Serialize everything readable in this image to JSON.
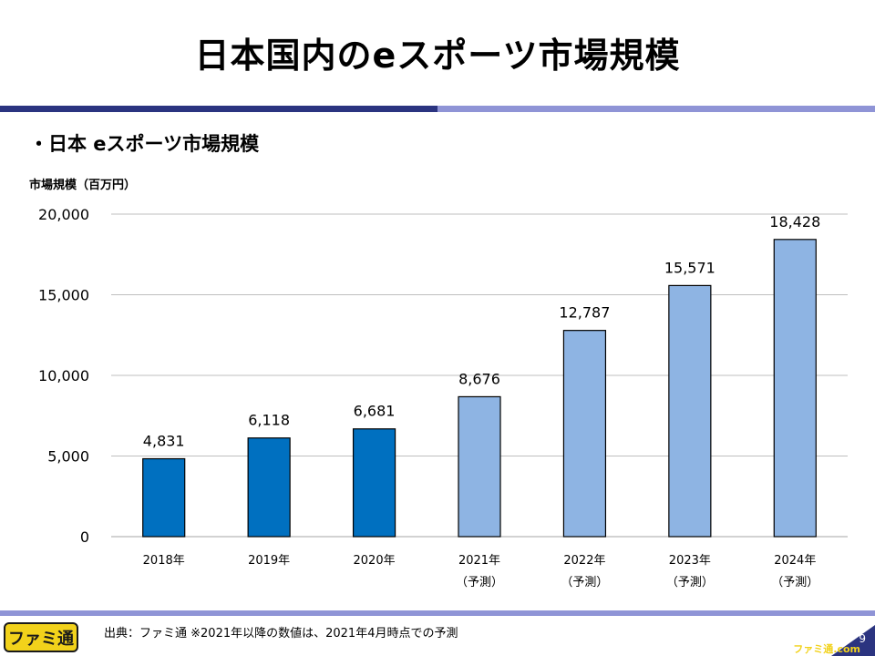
{
  "slide": {
    "title": "日本国内のeスポーツ市場規模",
    "section_heading": "・日本 eスポーツ市場規模",
    "source_note": "出典：ファミ通 ※2021年以降の数値は、2021年4月時点での予測",
    "page_number": "9",
    "logo_text": "ファミ通",
    "watermark": "ファミ通.com"
  },
  "colors": {
    "actual_bar": "#0070c0",
    "forecast_bar": "#8eb4e3",
    "header_dark": "#2b3480",
    "header_light": "#8f94d6",
    "logo_yellow": "#f2d21b"
  },
  "chart_data": {
    "type": "bar",
    "ylabel": "市場規模（百万円）",
    "categories": [
      "2018年",
      "2019年",
      "2020年",
      "2021年",
      "2022年",
      "2023年",
      "2024年"
    ],
    "category_notes": [
      "",
      "",
      "",
      "（予測）",
      "（予測）",
      "（予測）",
      "（予測）"
    ],
    "values": [
      4831,
      6118,
      6681,
      8676,
      12787,
      15571,
      18428
    ],
    "value_labels": [
      "4,831",
      "6,118",
      "6,681",
      "8,676",
      "12,787",
      "15,571",
      "18,428"
    ],
    "forecast": [
      false,
      false,
      false,
      true,
      true,
      true,
      true
    ],
    "ylim": [
      0,
      20000
    ],
    "yticks": [
      0,
      5000,
      10000,
      15000,
      20000
    ],
    "ytick_labels": [
      "0",
      "5,000",
      "10,000",
      "15,000",
      "20,000"
    ],
    "grid": true,
    "legend": "none"
  }
}
